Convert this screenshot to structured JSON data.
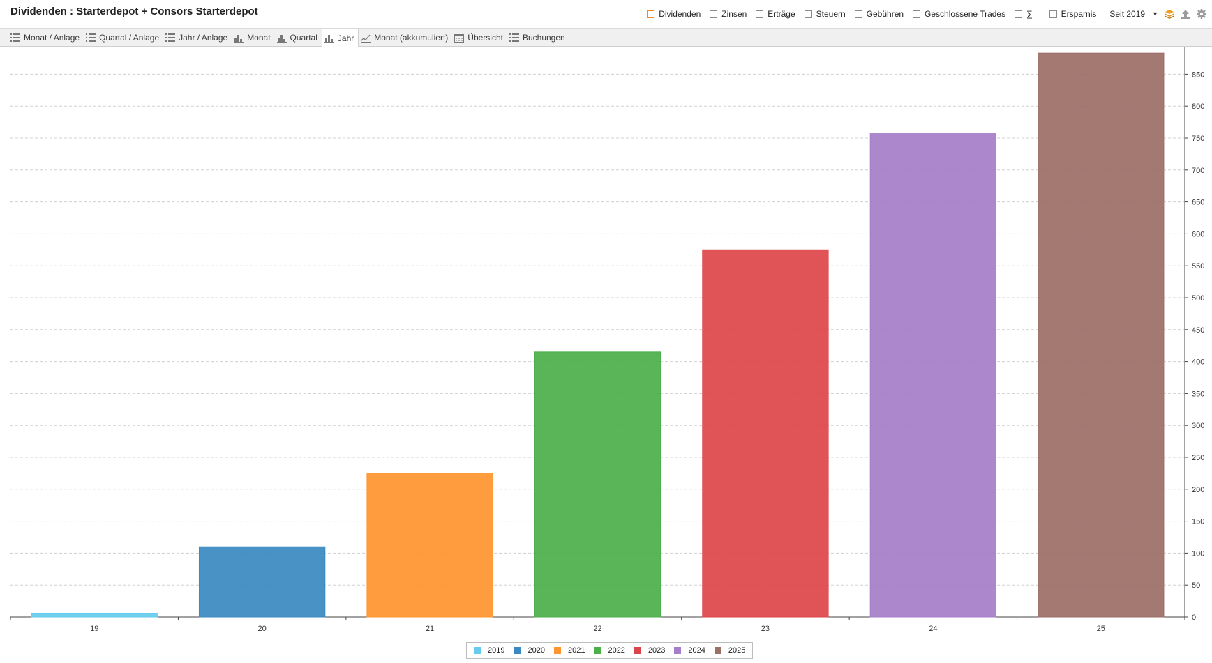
{
  "header": {
    "title": "Dividenden : Starterdepot + Consors Starterdepot",
    "filters": [
      {
        "label": "Dividenden",
        "checked": true
      },
      {
        "label": "Zinsen",
        "checked": false
      },
      {
        "label": "Erträge",
        "checked": false
      },
      {
        "label": "Steuern",
        "checked": false
      },
      {
        "label": "Gebühren",
        "checked": false
      },
      {
        "label": "Geschlossene Trades",
        "checked": false
      }
    ],
    "sum_symbol": "∑",
    "savings_label": "Ersparnis",
    "since_select": "Seit 2019",
    "icons": [
      "layers-icon",
      "upload-icon",
      "gear-icon"
    ]
  },
  "tabs": [
    {
      "label": "Monat / Anlage",
      "icon": "list-icon",
      "active": false
    },
    {
      "label": "Quartal / Anlage",
      "icon": "list-icon",
      "active": false
    },
    {
      "label": "Jahr / Anlage",
      "icon": "list-icon",
      "active": false
    },
    {
      "label": "Monat",
      "icon": "bar-chart-icon",
      "active": false
    },
    {
      "label": "Quartal",
      "icon": "bar-chart-icon",
      "active": false
    },
    {
      "label": "Jahr",
      "icon": "bar-chart-icon",
      "active": true
    },
    {
      "label": "Monat (akkumuliert)",
      "icon": "line-chart-icon",
      "active": false
    },
    {
      "label": "Übersicht",
      "icon": "calendar-icon",
      "active": false
    },
    {
      "label": "Buchungen",
      "icon": "list-icon",
      "active": false
    }
  ],
  "colors": {
    "accent": "#f08a24",
    "active_tab_bg": "#ffffff",
    "grid": "#d0d0d0"
  },
  "chart_data": {
    "type": "bar",
    "categories": [
      "19",
      "20",
      "21",
      "22",
      "23",
      "24",
      "25"
    ],
    "values": [
      6,
      110,
      225,
      415,
      575,
      757,
      883
    ],
    "series_colors": [
      "#66ccee",
      "#3a89c0",
      "#ff952e",
      "#4baf4a",
      "#dd4449",
      "#a57dc8",
      "#9b6e66"
    ],
    "legend": [
      "2019",
      "2020",
      "2021",
      "2022",
      "2023",
      "2024",
      "2025"
    ],
    "legend_position": "bottom-center",
    "ylim": [
      0,
      900
    ],
    "yticks": [
      0,
      50,
      100,
      150,
      200,
      250,
      300,
      350,
      400,
      450,
      500,
      550,
      600,
      650,
      700,
      750,
      800,
      850
    ],
    "y_axis_side": "right",
    "grid": true,
    "title": "",
    "xlabel": "",
    "ylabel": ""
  }
}
